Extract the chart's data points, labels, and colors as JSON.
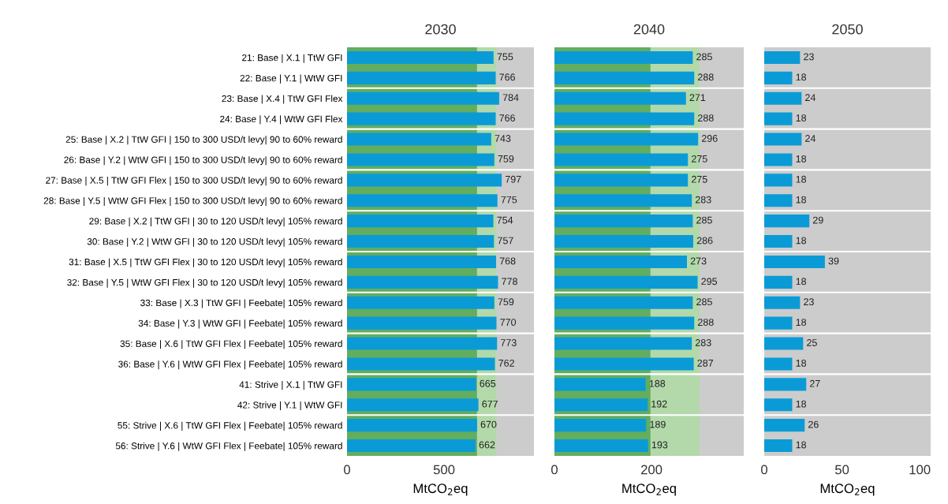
{
  "chart_data": [
    {
      "type": "bar",
      "orientation": "horizontal",
      "title": "2030",
      "xlabel": "MtCO$_{2}$eq",
      "data_labels": true,
      "grid": false,
      "xlim": [
        0,
        963
      ],
      "xticks": [
        0,
        500
      ],
      "categories": [
        "21: Base | X.1 | TtW GFI",
        "22: Base | Y.1 | WtW GFI",
        "23: Base | X.4 | TtW GFI Flex",
        "24: Base | Y.4 | WtW GFI Flex",
        "25: Base | X.2 | TtW GFI | 150 to 300 USD/t levy| 90 to 60% reward",
        "26: Base | Y.2 | WtW GFI | 150 to 300 USD/t levy| 90 to 60% reward",
        "27: Base | X.5 | TtW GFI Flex | 150 to 300 USD/t levy| 90 to 60% reward",
        "28: Base | Y.5 | WtW GFI Flex | 150 to 300 USD/t levy| 90 to 60% reward",
        "29: Base | X.2 | TtW GFI | 30 to 120 USD/t levy| 105% reward",
        "30: Base | Y.2 | WtW GFI | 30 to 120 USD/t levy| 105% reward",
        "31: Base | X.5 | TtW GFI Flex | 30 to 120 USD/t levy| 105% reward",
        "32: Base | Y.5 | WtW GFI Flex | 30 to 120 USD/t levy| 105% reward",
        "33: Base | X.3 | TtW GFI | Feebate| 105% reward",
        "34: Base | Y.3 | WtW GFI | Feebate| 105% reward",
        "35: Base | X.6 | TtW GFI Flex | Feebate| 105% reward",
        "36: Base | Y.6 | WtW GFI Flex | Feebate| 105% reward",
        "41: Strive | X.1 | TtW GFI",
        "42: Strive | Y.1 | WtW GFI",
        "55: Strive | X.6 | TtW GFI Flex | Feebate| 105% reward",
        "56: Strive | Y.6 | WtW GFI Flex | Feebate| 105% reward"
      ],
      "series": [
        {
          "color": "#0a9bd6",
          "values": [
            755,
            766,
            784,
            766,
            743,
            759,
            797,
            775,
            754,
            757,
            768,
            778,
            759,
            770,
            773,
            762,
            665,
            677,
            670,
            662
          ]
        }
      ],
      "bands": [
        {
          "axis": "x",
          "from": 0,
          "to": 963,
          "color": "#cccccc"
        },
        {
          "axis": "x",
          "from": 0,
          "to": 670,
          "color": "#62ad5e"
        },
        {
          "axis": "x",
          "from": 670,
          "to": 770,
          "color": "#b3d9aa"
        }
      ]
    },
    {
      "type": "bar",
      "orientation": "horizontal",
      "title": "2040",
      "xlabel": "MtCO$_{2}$eq",
      "data_labels": true,
      "grid": false,
      "tick_labels": "x",
      "xlim": [
        0,
        390
      ],
      "xticks": [
        0,
        200
      ],
      "categories": [
        null,
        null,
        null,
        null,
        null,
        null,
        null,
        null,
        null,
        null,
        null,
        null,
        null,
        null,
        null,
        null,
        null,
        null,
        null,
        null
      ],
      "series": [
        {
          "color": "#0a9bd6",
          "values": [
            285,
            288,
            271,
            288,
            296,
            275,
            275,
            283,
            285,
            286,
            273,
            295,
            285,
            288,
            283,
            287,
            188,
            192,
            189,
            193
          ]
        }
      ],
      "bands": [
        {
          "axis": "x",
          "from": 0,
          "to": 390,
          "color": "#cccccc"
        },
        {
          "axis": "x",
          "from": 0,
          "to": 198,
          "color": "#62ad5e"
        },
        {
          "axis": "x",
          "from": 198,
          "to": 299,
          "color": "#b3d9aa"
        }
      ]
    },
    {
      "type": "bar",
      "orientation": "horizontal",
      "title": "2050",
      "xlabel": "MtCO$_{2}$eq",
      "data_labels": true,
      "grid": false,
      "tick_labels": "x",
      "xlim": [
        0,
        107
      ],
      "xticks": [
        0,
        50,
        100
      ],
      "categories": [
        null,
        null,
        null,
        null,
        null,
        null,
        null,
        null,
        null,
        null,
        null,
        null,
        null,
        null,
        null,
        null,
        null,
        null,
        null,
        null
      ],
      "series": [
        {
          "color": "#0a9bd6",
          "values": [
            23,
            18,
            24,
            18,
            24,
            18,
            18,
            18,
            29,
            18,
            39,
            18,
            23,
            18,
            25,
            18,
            27,
            18,
            26,
            18
          ]
        }
      ],
      "bands": [
        {
          "axis": "x",
          "from": 0,
          "to": 107,
          "color": "#cccccc"
        }
      ]
    }
  ]
}
